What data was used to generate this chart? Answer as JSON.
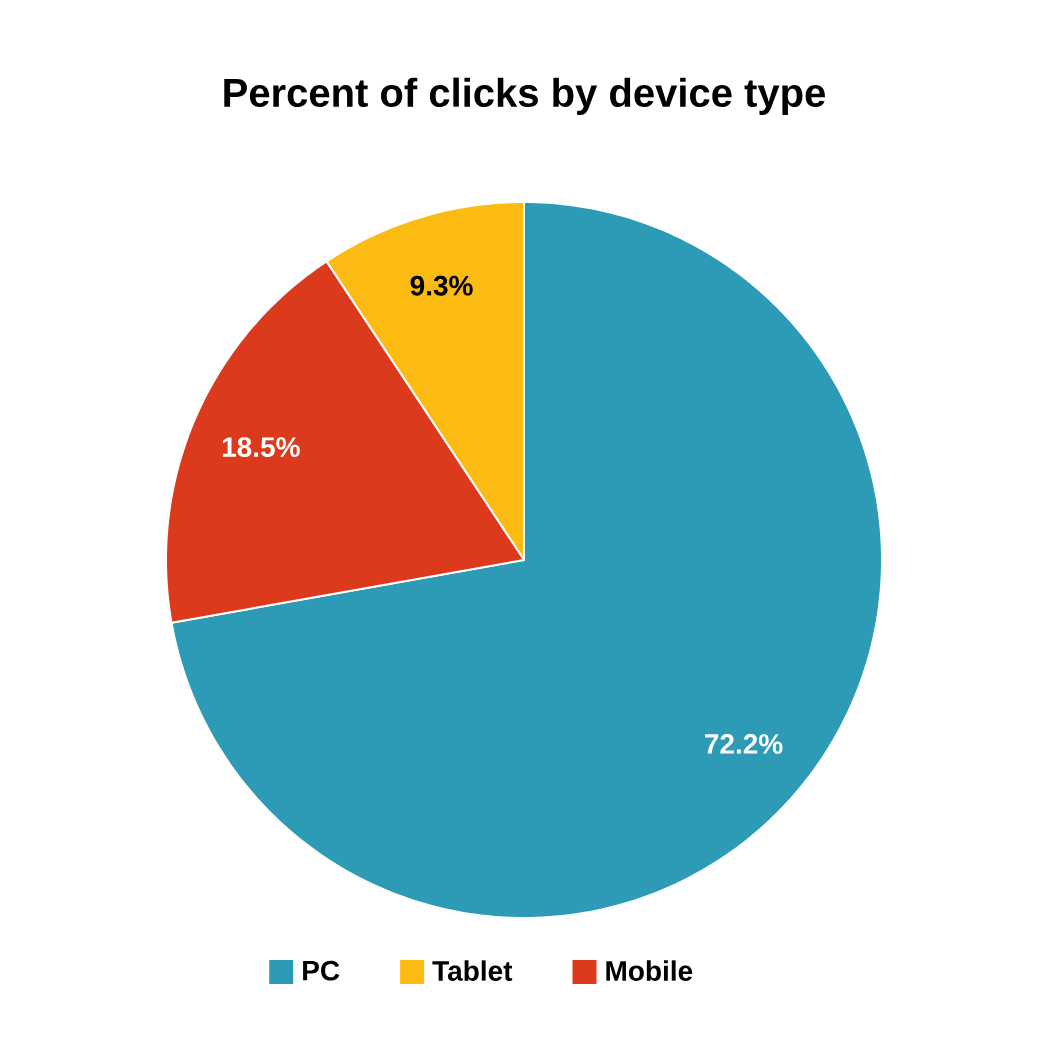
{
  "chart_data": {
    "type": "pie",
    "title": "Percent of clicks by device type",
    "categories": [
      "PC",
      "Tablet",
      "Mobile"
    ],
    "values": [
      72.2,
      9.3,
      18.5
    ],
    "colors": [
      "#2d9bb6",
      "#fcbb13",
      "#db3a1c"
    ],
    "value_labels": [
      "72.2%",
      "9.3%",
      "18.5%"
    ],
    "legend": "bottom"
  }
}
